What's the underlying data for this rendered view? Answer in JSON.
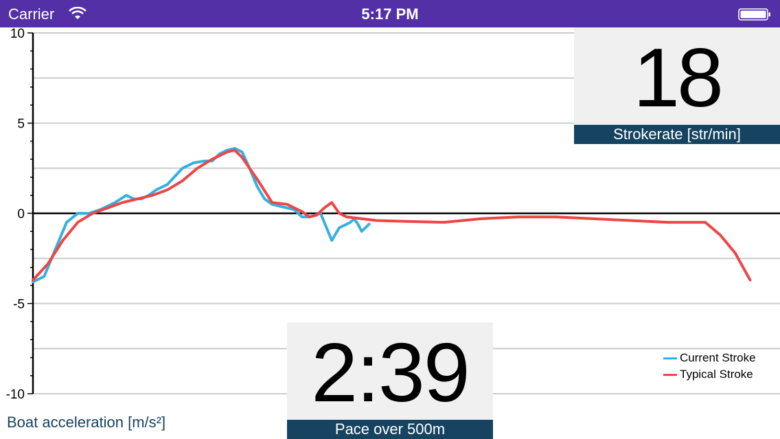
{
  "status_bar": {
    "carrier": "Carrier",
    "time": "5:17 PM",
    "icons": [
      "wifi-icon",
      "battery-icon"
    ]
  },
  "metrics": {
    "stroke_rate": {
      "value": "18",
      "label": "Strokerate [str/min]"
    },
    "pace": {
      "value": "2:39",
      "label": "Pace over 500m"
    }
  },
  "colors": {
    "status_bar": "#5330a6",
    "caption_bg": "#16435f",
    "tile_bg": "#f0f0f0",
    "current_stroke": "#35b0e0",
    "typical_stroke": "#ee4646"
  },
  "chart_data": {
    "type": "line",
    "ylabel": "Boat acceleration [m/s²]",
    "ylim": [
      -10,
      10
    ],
    "yticks": [
      10,
      5,
      0,
      -5,
      -10
    ],
    "grid": true,
    "legend_position": "bottom-right",
    "x_range": [
      0,
      1
    ],
    "series": [
      {
        "name": "Current Stroke",
        "color": "#35b0e0",
        "x": [
          0.0,
          0.015,
          0.03,
          0.045,
          0.06,
          0.075,
          0.09,
          0.11,
          0.125,
          0.135,
          0.145,
          0.155,
          0.165,
          0.18,
          0.2,
          0.215,
          0.23,
          0.24,
          0.25,
          0.26,
          0.27,
          0.28,
          0.29,
          0.3,
          0.31,
          0.32,
          0.33,
          0.34,
          0.35,
          0.36,
          0.37,
          0.385,
          0.4,
          0.41,
          0.42,
          0.425,
          0.43,
          0.435,
          0.44,
          0.45
        ],
        "y": [
          -3.8,
          -3.5,
          -2.0,
          -0.5,
          0.0,
          0.0,
          0.2,
          0.6,
          1.0,
          0.8,
          0.8,
          1.0,
          1.3,
          1.6,
          2.5,
          2.8,
          2.9,
          2.9,
          3.3,
          3.5,
          3.6,
          3.4,
          2.5,
          1.5,
          0.8,
          0.5,
          0.4,
          0.3,
          0.2,
          -0.2,
          -0.2,
          0.0,
          -1.5,
          -0.8,
          -0.6,
          -0.5,
          -0.3,
          -0.6,
          -1.0,
          -0.6
        ]
      },
      {
        "name": "Typical Stroke",
        "color": "#ee4646",
        "x": [
          0.0,
          0.02,
          0.04,
          0.06,
          0.08,
          0.1,
          0.12,
          0.14,
          0.16,
          0.18,
          0.2,
          0.22,
          0.24,
          0.26,
          0.27,
          0.28,
          0.3,
          0.32,
          0.34,
          0.36,
          0.37,
          0.38,
          0.39,
          0.4,
          0.41,
          0.42,
          0.44,
          0.46,
          0.5,
          0.55,
          0.6,
          0.65,
          0.7,
          0.75,
          0.8,
          0.85,
          0.9,
          0.92,
          0.94,
          0.96
        ],
        "y": [
          -3.7,
          -2.8,
          -1.5,
          -0.5,
          0.0,
          0.3,
          0.6,
          0.8,
          1.0,
          1.3,
          1.8,
          2.5,
          3.0,
          3.4,
          3.5,
          3.1,
          1.9,
          0.6,
          0.5,
          0.1,
          -0.2,
          -0.1,
          0.3,
          0.6,
          0.0,
          -0.2,
          -0.3,
          -0.4,
          -0.45,
          -0.5,
          -0.3,
          -0.2,
          -0.2,
          -0.3,
          -0.4,
          -0.5,
          -0.5,
          -1.2,
          -2.2,
          -3.7
        ]
      }
    ]
  }
}
